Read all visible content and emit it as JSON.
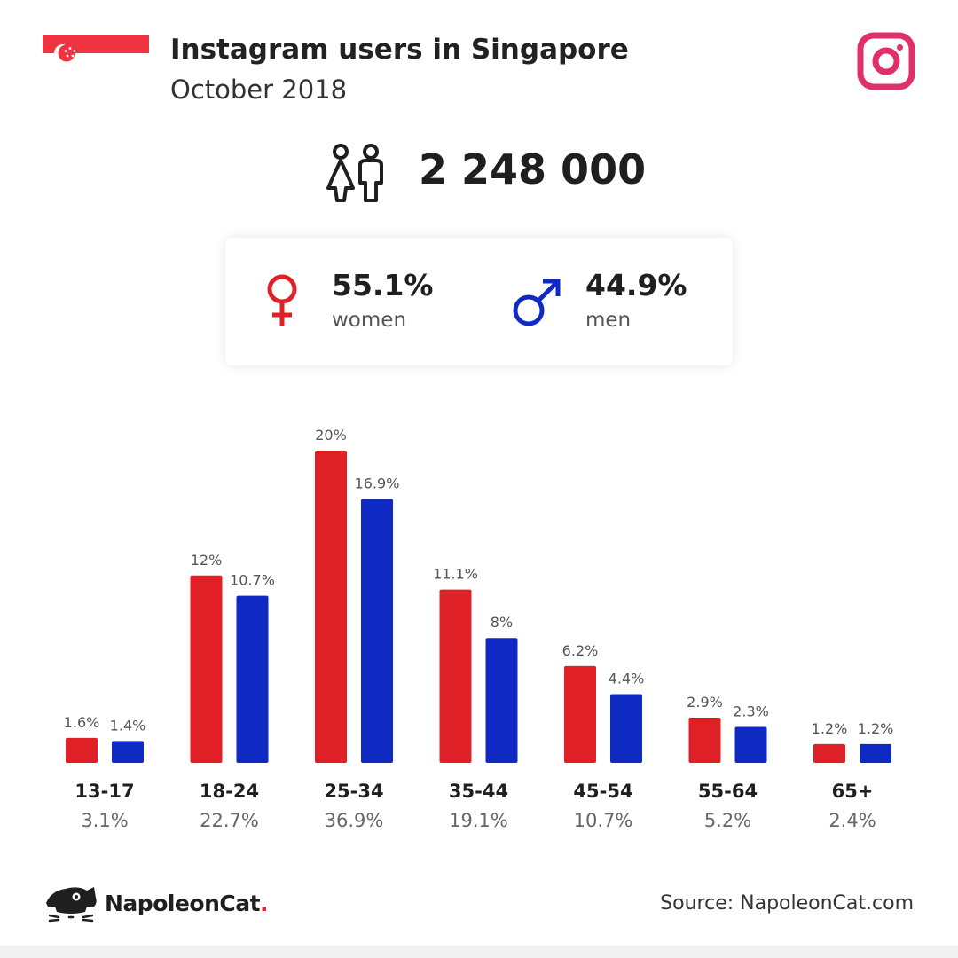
{
  "header": {
    "title": "Instagram users in Singapore",
    "subtitle": "October 2018"
  },
  "total_users": "2 248 000",
  "gender": {
    "women": {
      "pct": "55.1%",
      "label": "women"
    },
    "men": {
      "pct": "44.9%",
      "label": "men"
    }
  },
  "colors": {
    "women": "#df2027",
    "men": "#0e2ac2",
    "flag_red": "#ef3340",
    "instagram": "#e0306a"
  },
  "icons": {
    "flag": "singapore-flag",
    "instagram": "instagram-icon",
    "people": "people-icon",
    "female": "female-symbol-icon",
    "male": "male-symbol-icon",
    "logo": "napoleoncat-logo"
  },
  "chart_data": {
    "type": "bar",
    "categories": [
      "13-17",
      "18-24",
      "25-34",
      "35-44",
      "45-54",
      "55-64",
      "65+"
    ],
    "category_totals": [
      "3.1%",
      "22.7%",
      "36.9%",
      "19.1%",
      "10.7%",
      "5.2%",
      "2.4%"
    ],
    "series": [
      {
        "name": "women",
        "values": [
          1.6,
          12,
          20,
          11.1,
          6.2,
          2.9,
          1.2
        ],
        "labels": [
          "1.6%",
          "12%",
          "20%",
          "11.1%",
          "6.2%",
          "2.9%",
          "1.2%"
        ]
      },
      {
        "name": "men",
        "values": [
          1.4,
          10.7,
          16.9,
          8,
          4.4,
          2.3,
          1.2
        ],
        "labels": [
          "1.4%",
          "10.7%",
          "16.9%",
          "8%",
          "4.4%",
          "2.3%",
          "1.2%"
        ]
      }
    ],
    "ylim": [
      0,
      20
    ],
    "grid": false,
    "legend": "none"
  },
  "footer": {
    "brand": "NapoleonCat",
    "brand_dot": ".",
    "source": "Source: NapoleonCat.com"
  }
}
